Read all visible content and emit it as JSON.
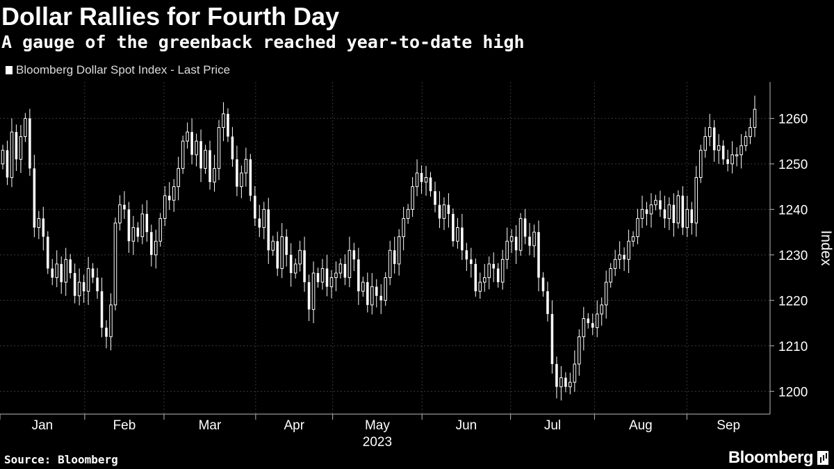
{
  "header": {
    "title": "Dollar Rallies for Fourth Day",
    "subtitle": "A gauge of the greenback reached year-to-date high"
  },
  "legend": {
    "label": "Bloomberg Dollar Spot Index - Last Price"
  },
  "footer": {
    "source": "Source: Bloomberg",
    "brand": "Bloomberg"
  },
  "colors": {
    "background": "#000000",
    "candle": "#ffffff",
    "grid": "#3a3a3a"
  },
  "chart_data": {
    "type": "candlestick",
    "title": "Dollar Rallies for Fourth Day",
    "subtitle": "A gauge of the greenback reached year-to-date high",
    "series_name": "Bloomberg Dollar Spot Index - Last Price",
    "ylabel": "Index",
    "xlabel": "2023",
    "ylim": [
      1195,
      1268
    ],
    "yticks": [
      1200,
      1210,
      1220,
      1230,
      1240,
      1250,
      1260
    ],
    "months": [
      "Jan",
      "Feb",
      "Mar",
      "Apr",
      "May",
      "Jun",
      "Jul",
      "Aug",
      "Sep"
    ],
    "year_label": "2023",
    "grid": true,
    "y_axis_side": "right",
    "closes": [
      1253,
      1247,
      1257,
      1251,
      1256,
      1260,
      1249,
      1236,
      1238,
      1234,
      1227,
      1225,
      1228,
      1224,
      1229,
      1226,
      1221,
      1224,
      1222,
      1227,
      1225,
      1222,
      1214,
      1212,
      1219,
      1237,
      1241,
      1240,
      1233,
      1236,
      1234,
      1239,
      1235,
      1230,
      1233,
      1238,
      1243,
      1242,
      1245,
      1249,
      1255,
      1257,
      1252,
      1255,
      1249,
      1253,
      1246,
      1249,
      1258,
      1261,
      1256,
      1251,
      1245,
      1248,
      1251,
      1243,
      1238,
      1236,
      1240,
      1231,
      1233,
      1227,
      1234,
      1230,
      1226,
      1228,
      1231,
      1224,
      1218,
      1226,
      1224,
      1227,
      1223,
      1225,
      1226,
      1228,
      1225,
      1231,
      1229,
      1222,
      1224,
      1219,
      1223,
      1221,
      1220,
      1225,
      1231,
      1228,
      1234,
      1238,
      1240,
      1245,
      1248,
      1246,
      1247,
      1244,
      1241,
      1238,
      1241,
      1239,
      1233,
      1236,
      1231,
      1229,
      1228,
      1222,
      1224,
      1225,
      1228,
      1227,
      1224,
      1229,
      1233,
      1234,
      1231,
      1238,
      1234,
      1232,
      1235,
      1225,
      1222,
      1217,
      1206,
      1201,
      1203,
      1201,
      1202,
      1206,
      1212,
      1216,
      1215,
      1214,
      1217,
      1219,
      1224,
      1227,
      1229,
      1230,
      1229,
      1233,
      1234,
      1238,
      1240,
      1239,
      1241,
      1242,
      1240,
      1238,
      1241,
      1237,
      1243,
      1236,
      1240,
      1237,
      1247,
      1253,
      1256,
      1258,
      1253,
      1254,
      1251,
      1250,
      1252,
      1252,
      1254,
      1256,
      1258,
      1262
    ]
  }
}
